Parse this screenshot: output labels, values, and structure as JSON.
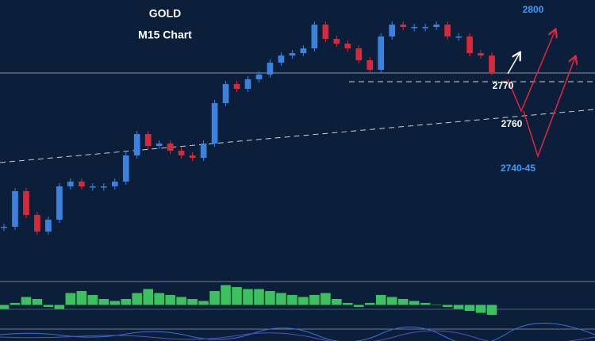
{
  "chart_data": [
    {
      "type": "candlestick",
      "title": "GOLD",
      "subtitle": "M15 Chart",
      "annotations": [
        "2800",
        "2770",
        "2760",
        "2740-45"
      ],
      "values": [
        2709,
        2724,
        2714,
        2707,
        2712,
        2726,
        2728,
        2726,
        2726,
        2726,
        2728,
        2739,
        2748,
        2743,
        2744,
        2741,
        2739,
        2738,
        2744,
        2761,
        2769,
        2767,
        2771,
        2773,
        2778,
        2781,
        2782,
        2784,
        2794,
        2788,
        2786,
        2784,
        2779,
        2775,
        2789,
        2794,
        2793,
        2793,
        2793,
        2794,
        2789,
        2789,
        2782,
        2781,
        2774
      ],
      "ylim": [
        2690,
        2804
      ],
      "up_color": "#3b82e0",
      "down_color": "#d8293a"
    },
    {
      "type": "bar",
      "values": [
        -0.2,
        0.1,
        0.4,
        0.3,
        -0.1,
        -0.2,
        0.6,
        0.7,
        0.5,
        0.3,
        0.2,
        0.3,
        0.6,
        0.8,
        0.6,
        0.5,
        0.4,
        0.3,
        0.2,
        0.7,
        1.0,
        0.9,
        0.8,
        0.8,
        0.7,
        0.6,
        0.5,
        0.4,
        0.5,
        0.6,
        0.3,
        0.1,
        -0.1,
        0.1,
        0.5,
        0.4,
        0.3,
        0.2,
        0.1,
        0.0,
        -0.1,
        -0.2,
        -0.3,
        -0.4,
        -0.5
      ],
      "ylim": [
        -1.1,
        1.1
      ],
      "color": "#3cc060"
    }
  ]
}
